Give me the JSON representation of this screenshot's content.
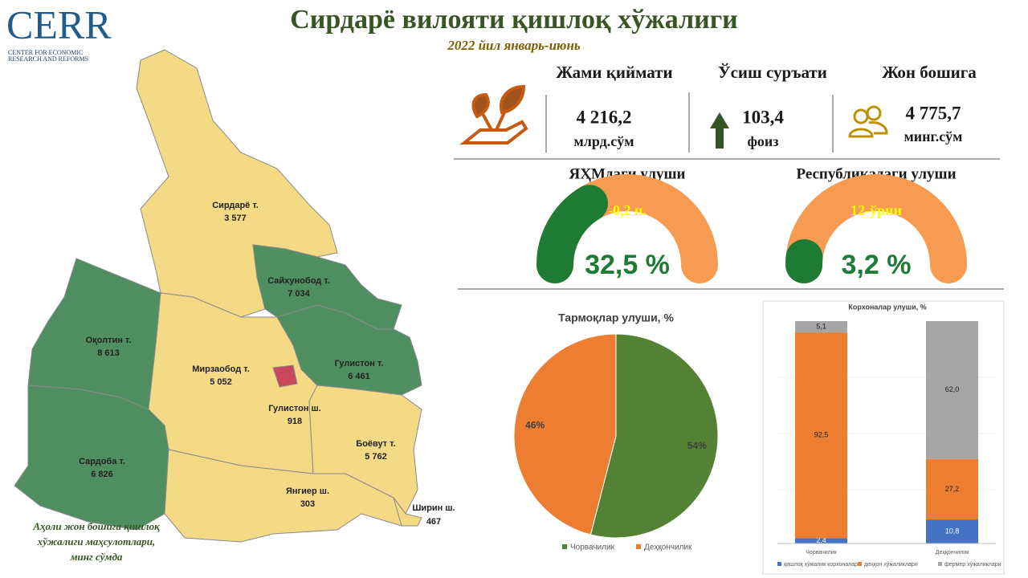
{
  "header": {
    "logo": "CERR",
    "logo_sub": [
      "CENTER FOR ECONOMIC",
      "RESEARCH AND REFORMS"
    ],
    "title": "Сирдарё вилояти қишлоқ хўжалиги",
    "subtitle": "2022 йил январь-июнь"
  },
  "kpis": [
    {
      "label": "Жами қиймати",
      "value": "4 216,2",
      "unit": "млрд.сўм"
    },
    {
      "label": "Ўсиш суръати",
      "value": "103,4",
      "unit": "фоиз"
    },
    {
      "label": "Жон бошига",
      "value": "4 775,7",
      "unit": "минг.сўм"
    }
  ],
  "map": {
    "regions": [
      {
        "name": "Сирдарё т.",
        "value": "3 577"
      },
      {
        "name": "Сайхунобод т.",
        "value": "7 034"
      },
      {
        "name": "Оқолтин т.",
        "value": "8 613"
      },
      {
        "name": "Мирзаобод т.",
        "value": "5 052"
      },
      {
        "name": "Гулистон т.",
        "value": "6 461"
      },
      {
        "name": "Гулистон ш.",
        "value": "918"
      },
      {
        "name": "Боёвут т.",
        "value": "5 762"
      },
      {
        "name": "Сардоба т.",
        "value": "6 826"
      },
      {
        "name": "Янгиер  ш.",
        "value": "303"
      },
      {
        "name": "Ширин ш.",
        "value": "467"
      }
    ],
    "caption": [
      "Аҳоли жон бошига қишлоқ",
      "хўжалиги маҳсулотлари,",
      "минг сўмда"
    ]
  },
  "chart_data": [
    {
      "type": "gauge",
      "title": "ЯҲМдаги улуши",
      "value": 32.5,
      "value_label": "32,5 %",
      "annotation": "-0,2 п.",
      "ylim": [
        0,
        100
      ]
    },
    {
      "type": "gauge",
      "title": "Республикадаги улуши",
      "value": 3.2,
      "value_label": "3,2 %",
      "annotation": "12-ўрин",
      "ylim": [
        0,
        100
      ]
    },
    {
      "type": "pie",
      "title": "Тармоқлар улуши, %",
      "categories": [
        "Чорвачилик",
        "Деҳқончилик"
      ],
      "values": [
        54,
        46
      ],
      "value_labels": [
        "54%",
        "46%"
      ],
      "colors": [
        "#548235",
        "#ed7d31"
      ]
    },
    {
      "type": "bar",
      "stacked": true,
      "title": "Корхоналар улуши, %",
      "categories": [
        "Чорвачилик",
        "Деҳқончилик"
      ],
      "ylim": [
        0,
        100
      ],
      "series": [
        {
          "name": "қишлоқ хўжалик корхоналари",
          "color": "#4472c4",
          "values": [
            2.4,
            10.8
          ],
          "value_labels": [
            "2,4",
            "10,8"
          ]
        },
        {
          "name": "деҳқон хўжаликлари",
          "color": "#ed7d31",
          "values": [
            92.5,
            27.2
          ],
          "value_labels": [
            "92,5",
            "27,2"
          ]
        },
        {
          "name": "фермер хўжаликлари",
          "color": "#a5a5a5",
          "values": [
            5.1,
            62.0
          ],
          "value_labels": [
            "5,1",
            "62,0"
          ]
        }
      ]
    }
  ]
}
